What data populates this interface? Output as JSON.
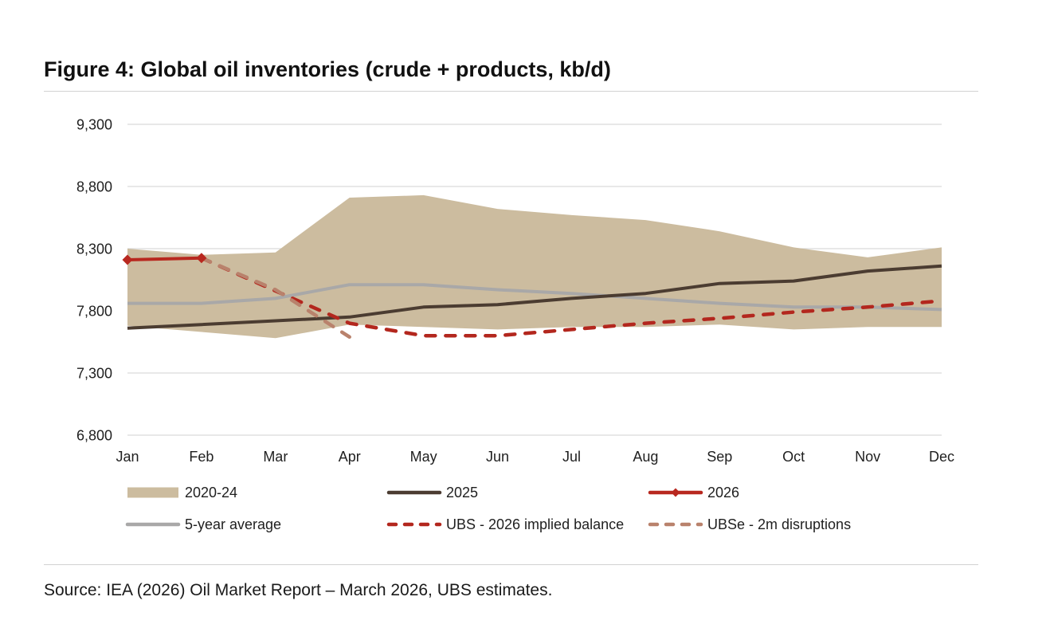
{
  "source": "Source: IEA (2026) Oil Market Report – March 2026, UBS estimates.",
  "chart_data": {
    "type": "line",
    "title": "Figure 4: Global oil inventories (crude + products, kb/d)",
    "xlabel": "",
    "ylabel": "",
    "categories": [
      "Jan",
      "Feb",
      "Mar",
      "Apr",
      "May",
      "Jun",
      "Jul",
      "Aug",
      "Sep",
      "Oct",
      "Nov",
      "Dec"
    ],
    "ylim": [
      6800,
      9300
    ],
    "yticks": [
      9300,
      8800,
      8300,
      7800,
      7300,
      6800
    ],
    "ytick_labels": [
      "9,300",
      "8,800",
      "8,300",
      "7,800",
      "7,300",
      "6,800"
    ],
    "grid": true,
    "legend_position": "bottom",
    "band": {
      "name": "2020-24",
      "color": "#ccbc9f",
      "high": [
        8300,
        8250,
        8270,
        8710,
        8730,
        8620,
        8570,
        8530,
        8440,
        8310,
        8230,
        8310
      ],
      "low": [
        7680,
        7630,
        7580,
        7690,
        7670,
        7650,
        7670,
        7670,
        7690,
        7650,
        7670,
        7670
      ]
    },
    "series": [
      {
        "name": "2025",
        "color": "#4b3c31",
        "dashed": false,
        "values": [
          7660,
          7690,
          7720,
          7750,
          7830,
          7850,
          7900,
          7940,
          8020,
          8040,
          8120,
          8160
        ]
      },
      {
        "name": "2026",
        "color": "#b8281f",
        "dashed": false,
        "marker": "diamond",
        "values": [
          8210,
          8225,
          null,
          null,
          null,
          null,
          null,
          null,
          null,
          null,
          null,
          null
        ]
      },
      {
        "name": "5-year average",
        "color": "#a9a8a8",
        "dashed": false,
        "values": [
          7860,
          7860,
          7900,
          8010,
          8010,
          7970,
          7940,
          7900,
          7860,
          7830,
          7830,
          7810
        ]
      },
      {
        "name": "UBS - 2026 implied balance",
        "color": "#b3271e",
        "dashed": true,
        "values": [
          null,
          8225,
          7960,
          7700,
          7600,
          7600,
          7650,
          7700,
          7740,
          7790,
          7830,
          7880
        ]
      },
      {
        "name": "UBSe - 2m disruptions",
        "color": "#b9826c",
        "dashed": true,
        "values": [
          null,
          8225,
          7970,
          7590,
          null,
          null,
          null,
          null,
          null,
          null,
          null,
          null
        ]
      }
    ]
  }
}
